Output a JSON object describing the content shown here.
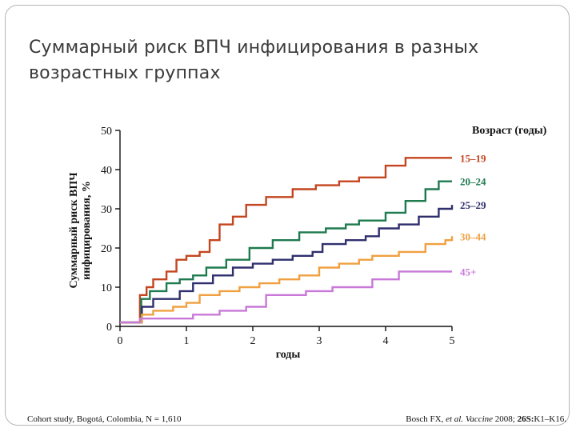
{
  "slide": {
    "title_line1": "Суммарный риск ВПЧ инфицирования в разных",
    "title_line2": "возрастных группах",
    "footer_left": "Cohort study, Bogotá, Colombia, N = 1,610",
    "footer_right": {
      "authors": "Bosch FX, ",
      "etal": "et al.",
      "journal": " Vaccine",
      "year": " 2008; ",
      "volume": "26S:",
      "pages": "K1–K16."
    }
  },
  "chart_data": {
    "type": "line",
    "step": true,
    "title": "",
    "xlabel": "годы",
    "ylabel_line1": "Суммарный риск ВПЧ",
    "ylabel_line2": "инфицирования, %",
    "legend_title": "Возраст (годы)",
    "xlim": [
      0,
      5
    ],
    "ylim": [
      0,
      50
    ],
    "x_ticks": [
      0,
      1,
      2,
      3,
      4,
      5
    ],
    "y_ticks": [
      0,
      10,
      20,
      30,
      40,
      50
    ],
    "grid": false,
    "series": [
      {
        "name": "15–19",
        "color": "#c4451f",
        "points": [
          [
            0,
            1
          ],
          [
            0.25,
            1
          ],
          [
            0.3,
            8
          ],
          [
            0.4,
            10
          ],
          [
            0.5,
            12
          ],
          [
            0.7,
            14
          ],
          [
            0.85,
            17
          ],
          [
            1.0,
            18
          ],
          [
            1.2,
            19
          ],
          [
            1.35,
            22
          ],
          [
            1.5,
            26
          ],
          [
            1.7,
            28
          ],
          [
            1.9,
            31
          ],
          [
            2.2,
            33
          ],
          [
            2.6,
            35
          ],
          [
            2.95,
            36
          ],
          [
            3.3,
            37
          ],
          [
            3.6,
            38
          ],
          [
            4.0,
            41
          ],
          [
            4.3,
            43
          ],
          [
            5.0,
            43
          ]
        ]
      },
      {
        "name": "20–24",
        "color": "#1e7a4f",
        "points": [
          [
            0,
            1
          ],
          [
            0.25,
            1
          ],
          [
            0.32,
            7
          ],
          [
            0.45,
            9
          ],
          [
            0.7,
            11
          ],
          [
            0.9,
            12
          ],
          [
            1.1,
            13
          ],
          [
            1.3,
            15
          ],
          [
            1.6,
            17
          ],
          [
            1.95,
            20
          ],
          [
            2.3,
            22
          ],
          [
            2.7,
            24
          ],
          [
            3.1,
            25
          ],
          [
            3.4,
            26
          ],
          [
            3.6,
            27
          ],
          [
            4.0,
            29
          ],
          [
            4.3,
            32
          ],
          [
            4.6,
            35
          ],
          [
            4.8,
            37
          ],
          [
            5.0,
            37
          ]
        ]
      },
      {
        "name": "25–29",
        "color": "#2f2f6e",
        "points": [
          [
            0,
            1
          ],
          [
            0.25,
            1
          ],
          [
            0.33,
            5
          ],
          [
            0.5,
            7
          ],
          [
            0.9,
            9
          ],
          [
            1.1,
            11
          ],
          [
            1.4,
            13
          ],
          [
            1.7,
            15
          ],
          [
            2.0,
            16
          ],
          [
            2.3,
            17
          ],
          [
            2.6,
            18
          ],
          [
            2.9,
            19
          ],
          [
            3.05,
            21
          ],
          [
            3.4,
            22
          ],
          [
            3.7,
            23
          ],
          [
            3.9,
            25
          ],
          [
            4.2,
            26
          ],
          [
            4.5,
            28
          ],
          [
            4.8,
            30
          ],
          [
            5.0,
            31
          ]
        ]
      },
      {
        "name": "30–44",
        "color": "#f0a040",
        "points": [
          [
            0,
            1
          ],
          [
            0.25,
            1
          ],
          [
            0.33,
            3
          ],
          [
            0.5,
            4
          ],
          [
            0.8,
            5
          ],
          [
            1.0,
            6
          ],
          [
            1.2,
            8
          ],
          [
            1.5,
            9
          ],
          [
            1.8,
            10
          ],
          [
            2.1,
            11
          ],
          [
            2.4,
            12
          ],
          [
            2.7,
            13
          ],
          [
            3.0,
            15
          ],
          [
            3.3,
            16
          ],
          [
            3.6,
            17
          ],
          [
            3.8,
            18
          ],
          [
            4.2,
            19
          ],
          [
            4.6,
            21
          ],
          [
            4.9,
            22
          ],
          [
            5.0,
            23
          ]
        ]
      },
      {
        "name": "45+",
        "color": "#c878d8",
        "points": [
          [
            0,
            1
          ],
          [
            0.25,
            1
          ],
          [
            0.3,
            2
          ],
          [
            0.8,
            2
          ],
          [
            1.1,
            3
          ],
          [
            1.5,
            4
          ],
          [
            1.9,
            5
          ],
          [
            2.2,
            8
          ],
          [
            2.8,
            9
          ],
          [
            3.2,
            10
          ],
          [
            3.8,
            12
          ],
          [
            4.2,
            14
          ],
          [
            5.0,
            14
          ]
        ]
      }
    ]
  }
}
